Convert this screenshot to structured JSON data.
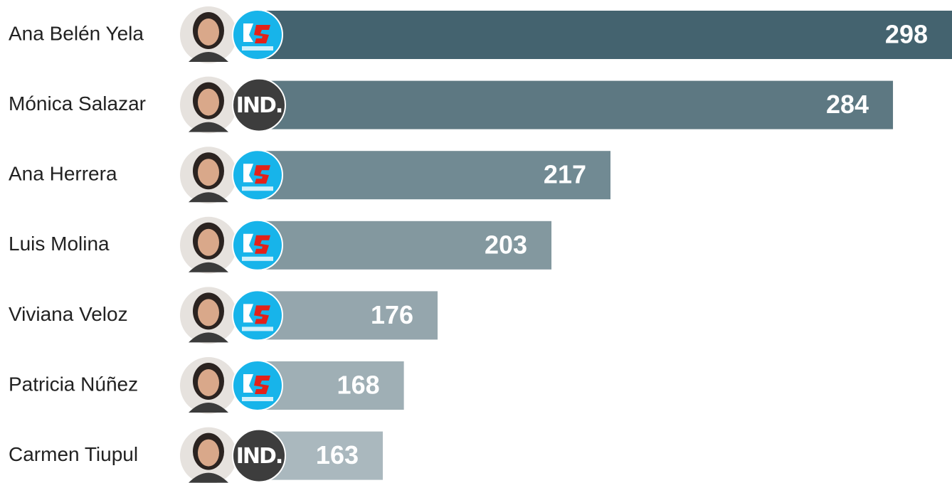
{
  "chart_data": {
    "type": "bar",
    "orientation": "horizontal",
    "categories": [
      "Ana Belén Yela",
      "Mónica Salazar",
      "Ana Herrera",
      "Luis Molina",
      "Viviana Veloz",
      "Patricia Núñez",
      "Carmen Tiupul"
    ],
    "values": [
      298,
      284,
      217,
      203,
      176,
      168,
      163
    ],
    "badges": [
      null,
      "IND.",
      null,
      null,
      null,
      null,
      "IND."
    ],
    "colors": [
      "#44636f",
      "#5d7882",
      "#718a93",
      "#83989f",
      "#95a6ad",
      "#9fafb5",
      "#aab8be"
    ]
  }
}
